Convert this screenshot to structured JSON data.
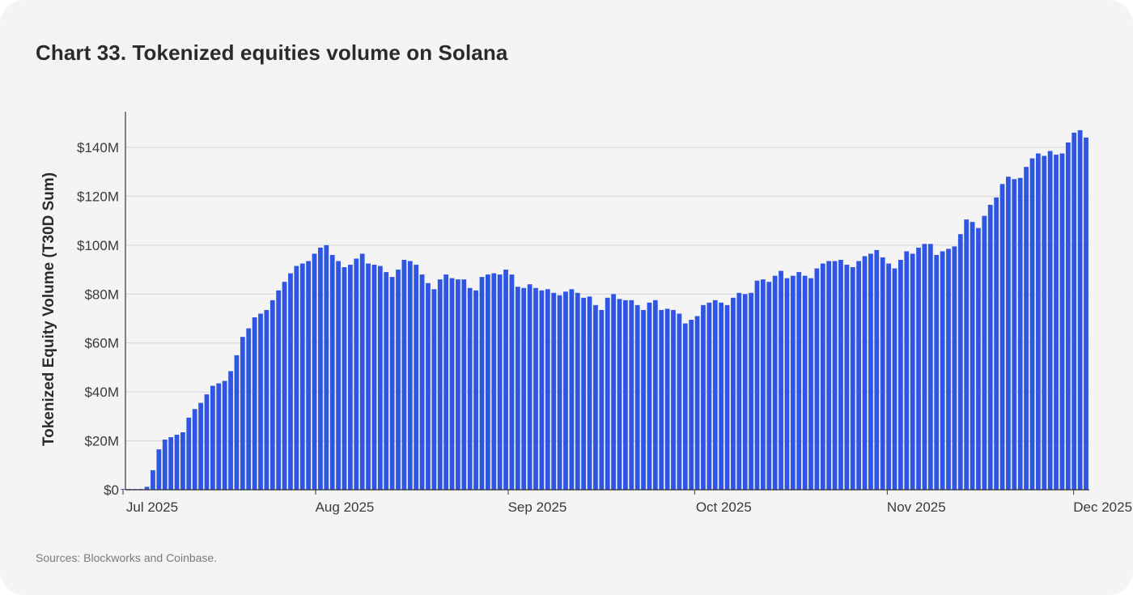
{
  "header": {
    "chart_number": "Chart 33.",
    "title": "Tokenized equities volume on Solana"
  },
  "footer": {
    "sources": "Sources: Blockworks and Coinbase."
  },
  "colors": {
    "bar": "#2f55e4",
    "grid": "#d6d6d6",
    "axis": "#333333",
    "background": "#f4f4f4"
  },
  "chart_data": {
    "type": "bar",
    "ylabel": "Tokenized Equity Volume (T30D Sum)",
    "xlabel": "",
    "ylim": [
      0,
      155
    ],
    "y_unit": "$M",
    "y_ticks": [
      {
        "value": 0,
        "label": "$0"
      },
      {
        "value": 20,
        "label": "$20M"
      },
      {
        "value": 40,
        "label": "$40M"
      },
      {
        "value": 60,
        "label": "$60M"
      },
      {
        "value": 80,
        "label": "$80M"
      },
      {
        "value": 100,
        "label": "$100M"
      },
      {
        "value": 120,
        "label": "$120M"
      },
      {
        "value": 140,
        "label": "$140M"
      }
    ],
    "x_ticks": [
      {
        "date": "2025-07-01",
        "label": "Jul 2025"
      },
      {
        "date": "2025-08-01",
        "label": "Aug 2025"
      },
      {
        "date": "2025-09-01",
        "label": "Sep 2025"
      },
      {
        "date": "2025-10-01",
        "label": "Oct 2025"
      },
      {
        "date": "2025-11-01",
        "label": "Nov 2025"
      },
      {
        "date": "2025-12-01",
        "label": "Dec 2025"
      }
    ],
    "x_range": [
      "2025-07-01",
      "2025-12-03"
    ],
    "grid": "horizontal",
    "legend": "none",
    "series": [
      {
        "values": [
          [
            0.3,
            0.3,
            0.3,
            0.3,
            1.2,
            8,
            16.5,
            20.5,
            21.5,
            22.5,
            23.5,
            29.5,
            33,
            35.5,
            39,
            42.5,
            43.5,
            44.5,
            48.5,
            55,
            62.5,
            66,
            70.5,
            72,
            73.5,
            77.5,
            81.5,
            85,
            88.5,
            91.5,
            92.5,
            93.5,
            96.5,
            99,
            100,
            96,
            93.5,
            91,
            92,
            94.5,
            96.5,
            92.5,
            92,
            91.5,
            89,
            87,
            90,
            94,
            93.5,
            92,
            88,
            84.5,
            82,
            86,
            88,
            86.5,
            86,
            86,
            82.5,
            81.5,
            87,
            88,
            88.5,
            88,
            90,
            88,
            83,
            82.5,
            84,
            82.5,
            81.5,
            82,
            80.5,
            79.5,
            81,
            82,
            80.5,
            78.5,
            79,
            75.5,
            73.5,
            78.5,
            80,
            78,
            77.5,
            77.5,
            75.5,
            73.5,
            76.5,
            77.5,
            73.5,
            74,
            73.5,
            72,
            68,
            69.5,
            71,
            75.5,
            76.5,
            77.5,
            76.5,
            75.5,
            78.5,
            80.5,
            80,
            80.5,
            85.5,
            86,
            85,
            87.5,
            89.5,
            86.5,
            87.5,
            89,
            87.5,
            86.5,
            90.5,
            92.5,
            93.5,
            93.5,
            94,
            92,
            91,
            93.5,
            95.5,
            96.5,
            98,
            95,
            92.5,
            90.5,
            94,
            97.5,
            96.5,
            99,
            100.5,
            100.5,
            96,
            97.5,
            98.5,
            99.5,
            104.5,
            110.5,
            109.5,
            107,
            112,
            116.5,
            119.5,
            125,
            128,
            127,
            127.5,
            132,
            135.5,
            137.5,
            136.5,
            138.5,
            137,
            137.5,
            142,
            146,
            147,
            144
          ]
        ]
      }
    ]
  }
}
